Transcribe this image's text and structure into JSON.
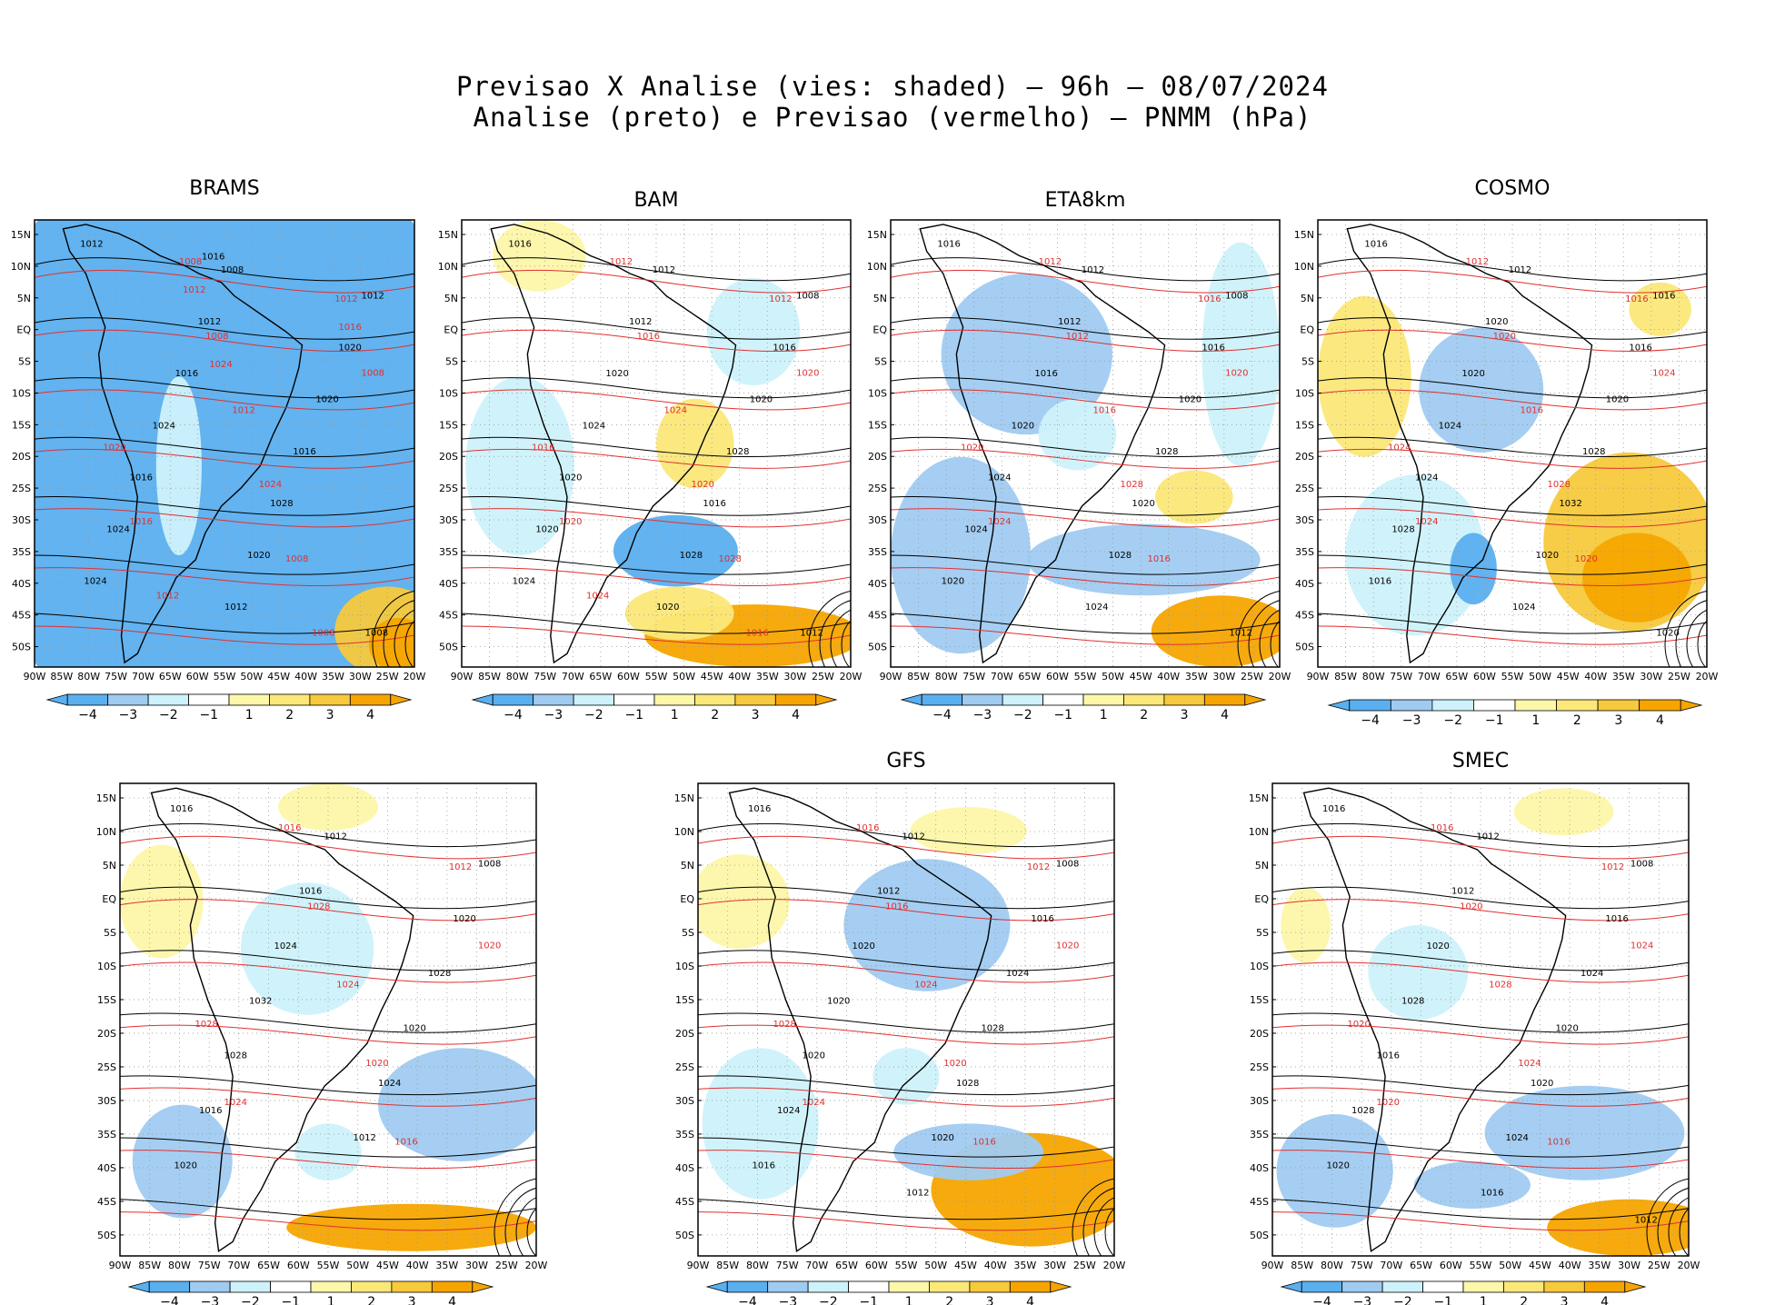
{
  "figure": {
    "title_line1": "Previsao X Analise (vies: shaded) — 96h — 08/07/2024",
    "title_line2": "Analise (preto) e Previsao (vermelho) — PNMM (hPa)"
  },
  "colors": {
    "bias_neg4": "#5aafef",
    "bias_neg3": "#a0cbf1",
    "bias_neg2": "#cdf2fb",
    "bias_neg1": "#ffffff",
    "bias_pos1": "#fdf7a9",
    "bias_pos2": "#fbe879",
    "bias_pos3": "#f7c93c",
    "bias_pos4": "#f6a500",
    "analysis_contour": "#000000",
    "forecast_contour": "#e03030",
    "ocean_bg_panel_brams": "#5aafef"
  },
  "axes": {
    "lat_labels": [
      "15N",
      "10N",
      "5N",
      "EQ",
      "5S",
      "10S",
      "15S",
      "20S",
      "25S",
      "30S",
      "35S",
      "40S",
      "45S",
      "50S"
    ],
    "lon_labels": [
      "90W",
      "85W",
      "80W",
      "75W",
      "70W",
      "65W",
      "60W",
      "55W",
      "50W",
      "45W",
      "40W",
      "35W",
      "30W",
      "25W",
      "20W"
    ]
  },
  "colorbar": {
    "labels": [
      "−4",
      "−3",
      "−2",
      "−1",
      "1",
      "2",
      "3",
      "4"
    ]
  },
  "panels": [
    {
      "name": "BRAMS",
      "contours_black": [
        "1012",
        "1008",
        "1012",
        "1012",
        "1020",
        "1016",
        "1020",
        "1024",
        "1016",
        "1016",
        "1028",
        "1024",
        "1020",
        "1024",
        "1012",
        "1008",
        "1016"
      ],
      "contours_red": [
        "1008",
        "1012",
        "1008",
        "1008",
        "1012",
        "1020",
        "1024",
        "1016",
        "1008",
        "1012",
        "1008",
        "1012",
        "1016",
        "1024"
      ]
    },
    {
      "name": "BAM",
      "contours_black": [
        "1016",
        "1012",
        "1008",
        "1012",
        "1016",
        "1020",
        "1020",
        "1024",
        "1028",
        "1020",
        "1016",
        "1020",
        "1028",
        "1024",
        "1020",
        "1012"
      ],
      "contours_red": [
        "1012",
        "1012",
        "1016",
        "1020",
        "1024",
        "1016",
        "1020",
        "1020",
        "1028",
        "1024",
        "1016"
      ]
    },
    {
      "name": "ETA8km",
      "contours_black": [
        "1016",
        "1012",
        "1008",
        "1012",
        "1016",
        "1016",
        "1020",
        "1020",
        "1028",
        "1024",
        "1020",
        "1024",
        "1028",
        "1020",
        "1024",
        "1012"
      ],
      "contours_red": [
        "1012",
        "1016",
        "1012",
        "1020",
        "1016",
        "1020",
        "1028",
        "1024",
        "1016"
      ]
    },
    {
      "name": "COSMO",
      "contours_black": [
        "1016",
        "1012",
        "1016",
        "1020",
        "1016",
        "1020",
        "1020",
        "1024",
        "1028",
        "1024",
        "1032",
        "1028",
        "1020",
        "1016",
        "1024",
        "1020"
      ],
      "contours_red": [
        "1012",
        "1016",
        "1020",
        "1024",
        "1016",
        "1024",
        "1028",
        "1024",
        "1020"
      ]
    },
    {
      "name": "",
      "contours_black": [
        "1016",
        "1012",
        "1008",
        "1016",
        "1020",
        "1024",
        "1028",
        "1032",
        "1020",
        "1028",
        "1024",
        "1016",
        "1012",
        "1020"
      ],
      "contours_red": [
        "1016",
        "1012",
        "1028",
        "1020",
        "1024",
        "1028",
        "1020",
        "1024",
        "1016"
      ]
    },
    {
      "name": "GFS",
      "contours_black": [
        "1016",
        "1012",
        "1008",
        "1012",
        "1016",
        "1020",
        "1024",
        "1020",
        "1028",
        "1020",
        "1028",
        "1024",
        "1020",
        "1016",
        "1012"
      ],
      "contours_red": [
        "1016",
        "1012",
        "1016",
        "1020",
        "1024",
        "1028",
        "1020",
        "1024",
        "1016"
      ]
    },
    {
      "name": "SMEC",
      "contours_black": [
        "1016",
        "1012",
        "1008",
        "1012",
        "1016",
        "1020",
        "1024",
        "1028",
        "1020",
        "1016",
        "1020",
        "1028",
        "1024",
        "1020",
        "1016",
        "1012"
      ],
      "contours_red": [
        "1016",
        "1012",
        "1020",
        "1024",
        "1028",
        "1020",
        "1024",
        "1020",
        "1016"
      ]
    }
  ]
}
